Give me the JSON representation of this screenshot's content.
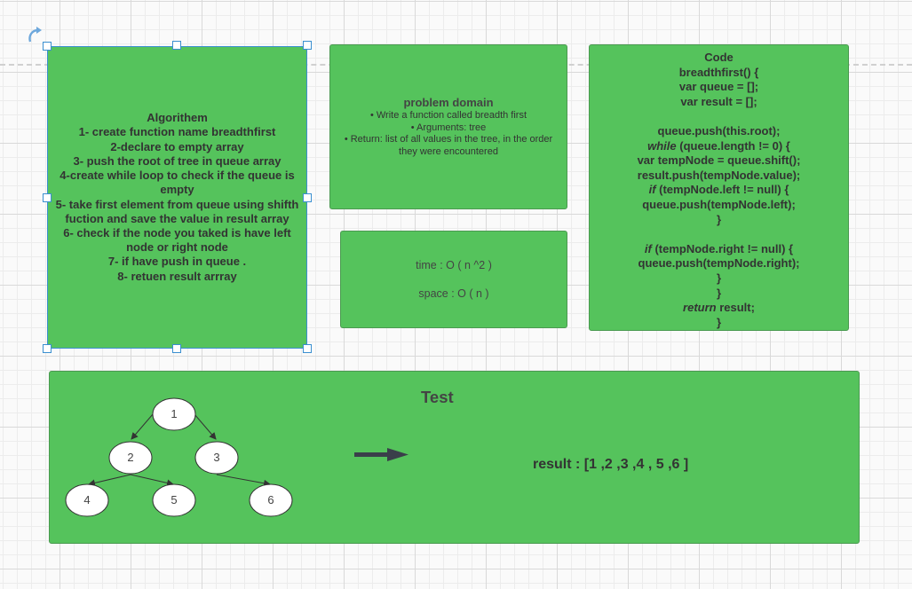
{
  "algorithm": {
    "lines": [
      "Algorithem",
      "1- create function name breadthfirst",
      "2-declare to empty array",
      "3- push the root of tree in queue array",
      "4-create while loop to check if the queue is empty",
      "5- take first element from queue using shifth fuction and save the value in result array",
      "6- check if the node you taked is have left node or right node",
      "7- if have push in queue .",
      "8- retuen result arrray"
    ]
  },
  "problem": {
    "title": "problem domain",
    "bullets": [
      "• Write a function called breadth first",
      "• Arguments: tree",
      "• Return: list of all values in the tree, in the order they were encountered"
    ]
  },
  "complexity": {
    "time": "time : O ( n ^2 )",
    "space": "space : O ( n )"
  },
  "code": {
    "title": "Code",
    "l1": "breadthfirst() {",
    "l2": "var queue = [];",
    "l3": "var result = [];",
    "l4": "queue.push(this.root);",
    "l5_kw": "while",
    "l5": " (queue.length != 0) {",
    "l6": "var tempNode = queue.shift();",
    "l7": "result.push(tempNode.value);",
    "l8_kw": "if",
    "l8": " (tempNode.left != null) {",
    "l9": "queue.push(tempNode.left);",
    "l10": "}",
    "l11_kw": "if",
    "l11": " (tempNode.right != null) {",
    "l12": "queue.push(tempNode.right);",
    "l13": "}",
    "l14": "}",
    "l15_kw": "return",
    "l15": " result;",
    "l16": "}"
  },
  "test": {
    "title": "Test",
    "nodes": [
      "1",
      "2",
      "3",
      "4",
      "5",
      "6"
    ],
    "result": "result : [1 ,2 ,3 ,4 , 5 ,6 ]"
  },
  "colors": {
    "card_fill": "#55c35c",
    "selection": "#3a8fd0",
    "arrow": "#3a3f4a"
  }
}
